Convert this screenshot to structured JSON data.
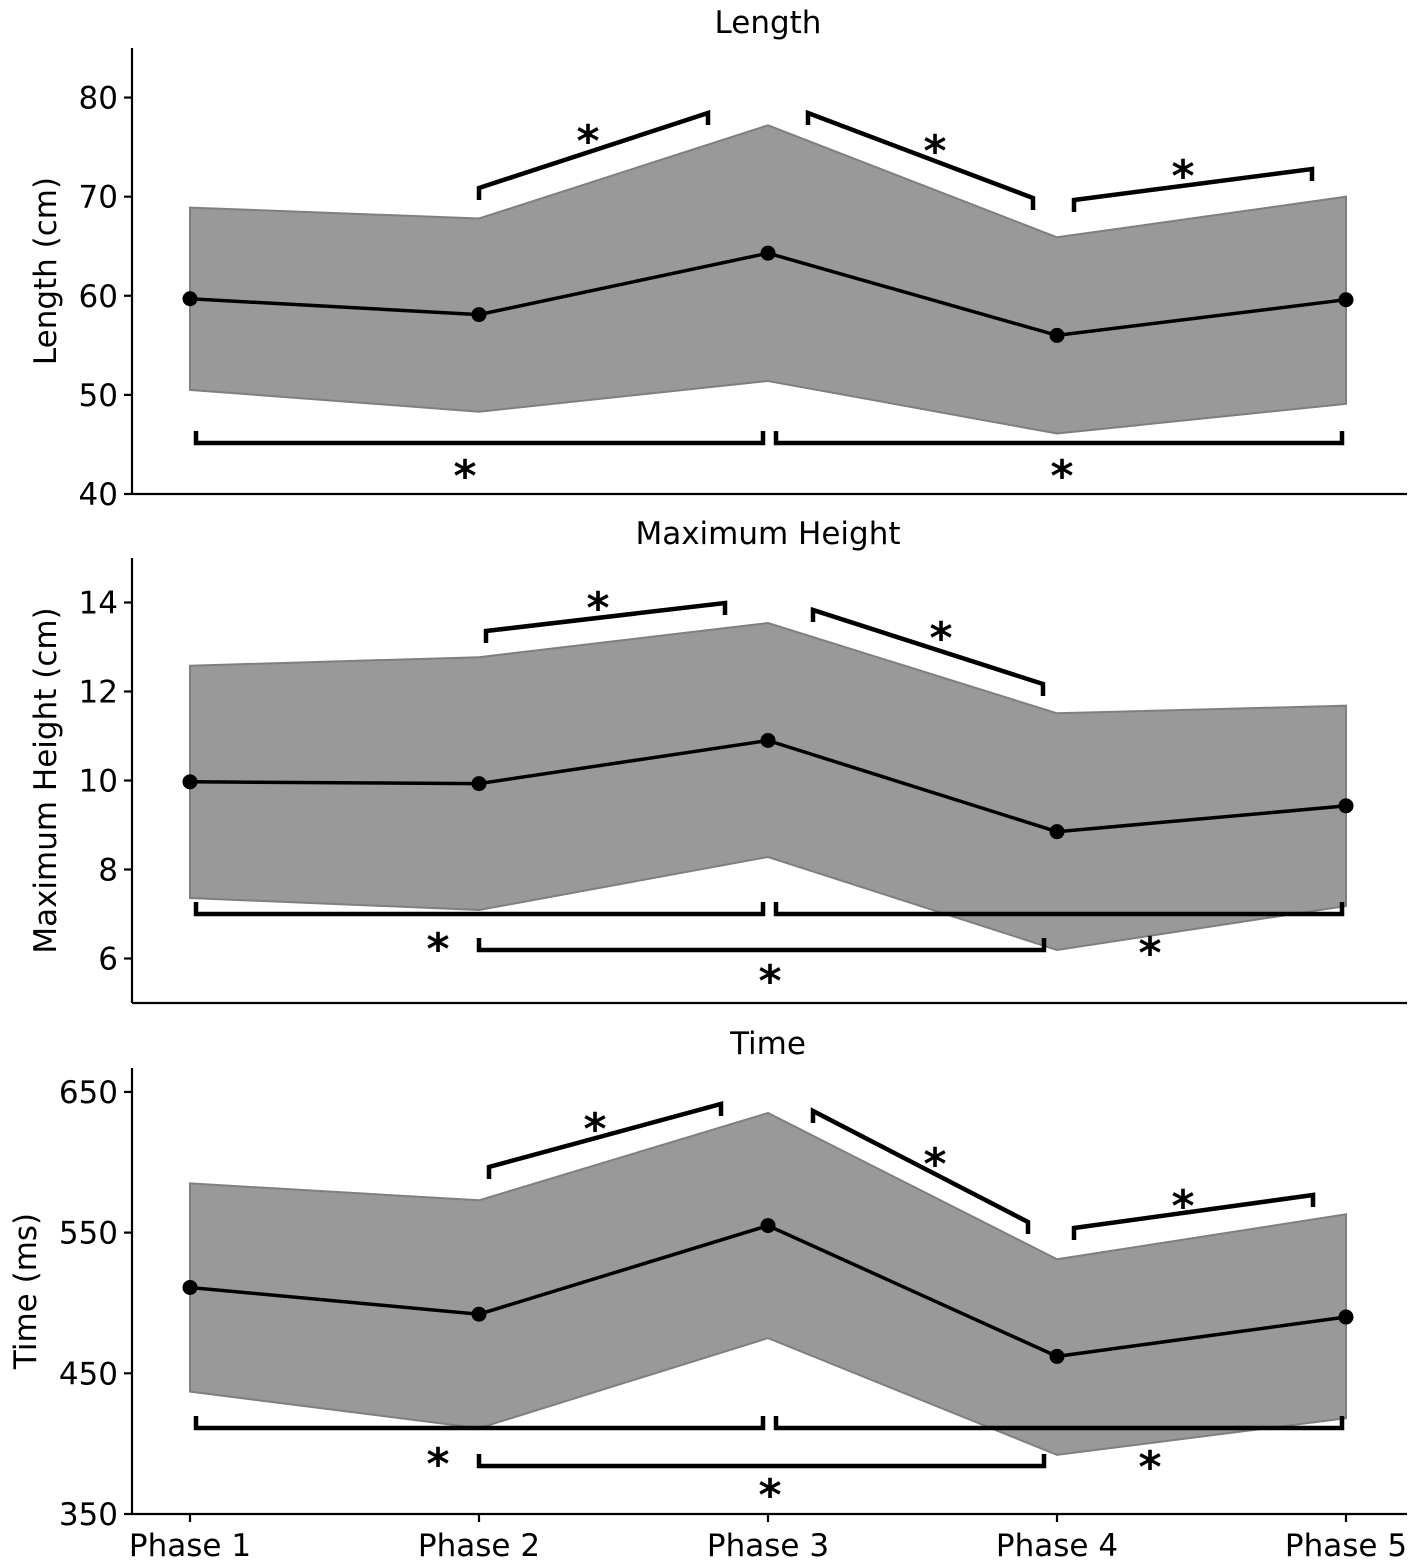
{
  "chart_data": [
    {
      "type": "line",
      "title": "Length",
      "ylabel": "Length (cm)",
      "xlabel": "",
      "categories": [
        "Phase 1",
        "Phase 2",
        "Phase 3",
        "Phase 4",
        "Phase 5"
      ],
      "series": [
        {
          "name": "mean",
          "values": [
            59.7,
            58.1,
            64.3,
            56.0,
            59.6
          ]
        },
        {
          "name": "upper",
          "values": [
            68.9,
            67.8,
            77.2,
            65.9,
            70.0
          ]
        },
        {
          "name": "lower",
          "values": [
            50.5,
            48.3,
            51.4,
            46.1,
            49.1
          ]
        }
      ],
      "ylim": [
        40,
        85
      ],
      "yticks": [
        40,
        50,
        60,
        70,
        80
      ],
      "brackets": [
        {
          "from": 2,
          "to": 3,
          "label": "*",
          "placement": "above"
        },
        {
          "from": 3,
          "to": 4,
          "label": "*",
          "placement": "above"
        },
        {
          "from": 4,
          "to": 5,
          "label": "*",
          "placement": "above"
        },
        {
          "from": 1,
          "to": 3,
          "label": "*",
          "placement": "below"
        },
        {
          "from": 3,
          "to": 5,
          "label": "*",
          "placement": "below"
        }
      ]
    },
    {
      "type": "line",
      "title": "Maximum Height",
      "ylabel": "Maximum Height (cm)",
      "xlabel": "",
      "categories": [
        "Phase 1",
        "Phase 2",
        "Phase 3",
        "Phase 4",
        "Phase 5"
      ],
      "series": [
        {
          "name": "mean",
          "values": [
            9.97,
            9.93,
            10.9,
            8.85,
            9.43
          ]
        },
        {
          "name": "upper",
          "values": [
            12.58,
            12.77,
            13.54,
            11.51,
            11.68
          ]
        },
        {
          "name": "lower",
          "values": [
            7.36,
            7.09,
            8.28,
            6.19,
            7.18
          ]
        }
      ],
      "ylim": [
        5,
        15
      ],
      "yticks": [
        6,
        8,
        10,
        12,
        14
      ],
      "brackets": [
        {
          "from": 2,
          "to": 3,
          "label": "*",
          "placement": "above"
        },
        {
          "from": 3,
          "to": 4,
          "label": "*",
          "placement": "above"
        },
        {
          "from": 1,
          "to": 3,
          "label": "*",
          "placement": "below"
        },
        {
          "from": 3,
          "to": 5,
          "label": "*",
          "placement": "below"
        },
        {
          "from": 2,
          "to": 4,
          "label": "*",
          "placement": "below"
        }
      ]
    },
    {
      "type": "line",
      "title": "Time",
      "ylabel": "Time (ms)",
      "xlabel": "",
      "categories": [
        "Phase 1",
        "Phase 2",
        "Phase 3",
        "Phase 4",
        "Phase 5"
      ],
      "series": [
        {
          "name": "mean",
          "values": [
            511,
            492,
            555,
            462,
            490
          ]
        },
        {
          "name": "upper",
          "values": [
            585,
            573,
            635,
            531,
            563
          ]
        },
        {
          "name": "lower",
          "values": [
            437,
            411,
            475,
            392,
            418
          ]
        }
      ],
      "ylim": [
        350,
        667
      ],
      "yticks": [
        350,
        450,
        550,
        650
      ],
      "brackets": [
        {
          "from": 2,
          "to": 3,
          "label": "*",
          "placement": "above"
        },
        {
          "from": 3,
          "to": 4,
          "label": "*",
          "placement": "above"
        },
        {
          "from": 4,
          "to": 5,
          "label": "*",
          "placement": "above"
        },
        {
          "from": 1,
          "to": 3,
          "label": "*",
          "placement": "below"
        },
        {
          "from": 3,
          "to": 5,
          "label": "*",
          "placement": "below"
        },
        {
          "from": 2,
          "to": 4,
          "label": "*",
          "placement": "below"
        }
      ]
    }
  ]
}
